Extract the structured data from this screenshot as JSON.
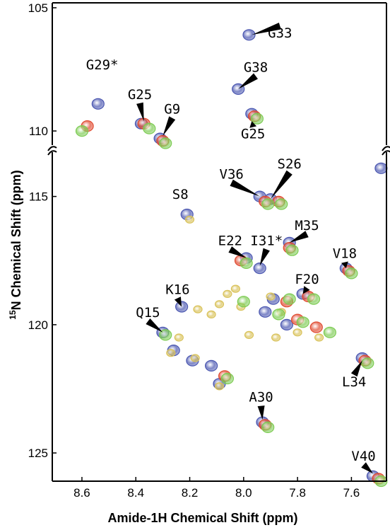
{
  "chart_data": {
    "type": "scatter",
    "title": "",
    "xlabel": "Amide-1H Chemical Shift (ppm)",
    "ylabel_prefix": "15",
    "ylabel_main": "N Chemical Shift (ppm)",
    "x_reversed": true,
    "xlim": [
      7.47,
      8.71
    ],
    "x_ticks": [
      8.6,
      8.4,
      8.2,
      8.0,
      7.8,
      7.6
    ],
    "x_tick_labels": [
      "8.6",
      "8.4",
      "8.2",
      "8.0",
      "7.8",
      "7.6"
    ],
    "upper_panel": {
      "ylim": [
        104.8,
        110.6
      ],
      "y_ticks": [
        105,
        110
      ],
      "y_tick_labels": [
        "105",
        "110"
      ]
    },
    "lower_panel": {
      "ylim": [
        113.3,
        126.1
      ],
      "y_ticks": [
        115,
        120,
        125
      ],
      "y_tick_labels": [
        "115",
        "120",
        "125"
      ]
    },
    "colors": {
      "blue": "#4a56b0",
      "red": "#e0492f",
      "green": "#7ccb52",
      "yellow": "#d9c25a",
      "arrow": "#000000"
    },
    "series": [
      {
        "color": "blue",
        "points": [
          [
            8.54,
            108.9
          ],
          [
            8.38,
            109.7
          ],
          [
            8.31,
            110.3
          ],
          [
            7.98,
            106.1
          ],
          [
            8.02,
            108.3
          ],
          [
            7.97,
            109.3
          ],
          [
            7.49,
            113.9
          ],
          [
            8.21,
            115.7
          ],
          [
            7.94,
            115.0
          ],
          [
            7.9,
            115.1
          ],
          [
            7.83,
            116.8
          ],
          [
            7.94,
            117.8
          ],
          [
            7.99,
            117.4
          ],
          [
            7.62,
            117.8
          ],
          [
            7.78,
            118.8
          ],
          [
            8.23,
            119.3
          ],
          [
            8.3,
            120.3
          ],
          [
            8.26,
            121.0
          ],
          [
            8.19,
            121.4
          ],
          [
            8.12,
            121.6
          ],
          [
            8.09,
            122.3
          ],
          [
            7.89,
            119.0
          ],
          [
            7.92,
            119.5
          ],
          [
            7.84,
            120.0
          ],
          [
            7.56,
            121.3
          ],
          [
            7.93,
            123.8
          ],
          [
            7.52,
            125.9
          ]
        ]
      },
      {
        "color": "red",
        "points": [
          [
            8.58,
            109.8
          ],
          [
            8.37,
            109.7
          ],
          [
            8.3,
            110.4
          ],
          [
            7.96,
            109.4
          ],
          [
            8.01,
            117.5
          ],
          [
            7.92,
            115.2
          ],
          [
            7.87,
            115.2
          ],
          [
            7.83,
            117.0
          ],
          [
            7.61,
            117.9
          ],
          [
            7.76,
            118.9
          ],
          [
            7.84,
            119.1
          ],
          [
            7.8,
            119.8
          ],
          [
            7.73,
            120.1
          ],
          [
            8.07,
            122.0
          ],
          [
            7.55,
            121.4
          ],
          [
            7.92,
            123.9
          ],
          [
            7.5,
            126.0
          ]
        ]
      },
      {
        "color": "green",
        "points": [
          [
            8.6,
            110.0
          ],
          [
            8.35,
            109.9
          ],
          [
            8.29,
            110.5
          ],
          [
            7.95,
            109.5
          ],
          [
            7.99,
            117.6
          ],
          [
            7.91,
            115.3
          ],
          [
            7.86,
            115.3
          ],
          [
            7.82,
            117.1
          ],
          [
            7.6,
            118.0
          ],
          [
            7.74,
            119.0
          ],
          [
            8.0,
            119.1
          ],
          [
            7.87,
            119.6
          ],
          [
            7.83,
            119.0
          ],
          [
            7.78,
            119.9
          ],
          [
            7.68,
            120.3
          ],
          [
            8.29,
            120.4
          ],
          [
            8.06,
            122.1
          ],
          [
            7.54,
            121.5
          ],
          [
            7.91,
            124.0
          ],
          [
            7.49,
            126.1
          ]
        ]
      },
      {
        "color": "yellow",
        "points": [
          [
            8.2,
            115.9
          ],
          [
            8.17,
            119.4
          ],
          [
            8.12,
            119.6
          ],
          [
            8.09,
            119.2
          ],
          [
            8.06,
            118.8
          ],
          [
            8.03,
            118.6
          ],
          [
            8.01,
            119.3
          ],
          [
            7.98,
            120.4
          ],
          [
            7.88,
            120.5
          ],
          [
            7.8,
            120.3
          ],
          [
            7.72,
            120.5
          ],
          [
            8.27,
            121.1
          ],
          [
            8.24,
            120.5
          ],
          [
            8.18,
            121.3
          ],
          [
            8.09,
            122.4
          ],
          [
            7.9,
            118.9
          ],
          [
            7.86,
            119.5
          ]
        ]
      }
    ],
    "annotations": [
      {
        "text": "G29*",
        "x": 8.525,
        "y": 107.5,
        "ax": 8.54,
        "ay": 108.7,
        "arrow": false
      },
      {
        "text": "G25",
        "x": 8.385,
        "y": 108.7,
        "ax": 8.37,
        "ay": 109.6,
        "arrow": true
      },
      {
        "text": "G9",
        "x": 8.265,
        "y": 109.3,
        "ax": 8.3,
        "ay": 110.2,
        "arrow": true
      },
      {
        "text": "G33",
        "x": 7.865,
        "y": 106.2,
        "ax": 7.97,
        "ay": 106.1,
        "arrow": true
      },
      {
        "text": "G38",
        "x": 7.955,
        "y": 107.6,
        "ax": 8.02,
        "ay": 108.3,
        "arrow": true
      },
      {
        "text": "G25",
        "x": 7.965,
        "y": 110.3,
        "ax": 7.97,
        "ay": 109.6,
        "arrow": true
      },
      {
        "text": "S8",
        "x": 8.235,
        "y": 115.1,
        "ax": 8.21,
        "ay": 115.6,
        "arrow": false
      },
      {
        "text": "V36",
        "x": 8.045,
        "y": 114.3,
        "ax": 7.94,
        "ay": 115.0,
        "arrow": true
      },
      {
        "text": "S26",
        "x": 7.83,
        "y": 113.9,
        "ax": 7.9,
        "ay": 115.1,
        "arrow": true
      },
      {
        "text": "M35",
        "x": 7.765,
        "y": 116.3,
        "ax": 7.83,
        "ay": 116.8,
        "arrow": true
      },
      {
        "text": "I31*",
        "x": 7.915,
        "y": 116.9,
        "ax": 7.94,
        "ay": 117.7,
        "arrow": true
      },
      {
        "text": "E22",
        "x": 8.05,
        "y": 116.9,
        "ax": 7.99,
        "ay": 117.4,
        "arrow": true
      },
      {
        "text": "V18",
        "x": 7.625,
        "y": 117.4,
        "ax": 7.62,
        "ay": 117.8,
        "arrow": true
      },
      {
        "text": "F20",
        "x": 7.765,
        "y": 118.4,
        "ax": 7.78,
        "ay": 118.8,
        "arrow": true
      },
      {
        "text": "K16",
        "x": 8.245,
        "y": 118.8,
        "ax": 8.23,
        "ay": 119.3,
        "arrow": true
      },
      {
        "text": "Q15",
        "x": 8.355,
        "y": 119.7,
        "ax": 8.3,
        "ay": 120.3,
        "arrow": true
      },
      {
        "text": "L34",
        "x": 7.59,
        "y": 122.4,
        "ax": 7.56,
        "ay": 121.4,
        "arrow": true
      },
      {
        "text": "A30",
        "x": 7.935,
        "y": 123.0,
        "ax": 7.93,
        "ay": 123.7,
        "arrow": true
      },
      {
        "text": "V40",
        "x": 7.555,
        "y": 125.3,
        "ax": 7.52,
        "ay": 125.8,
        "arrow": true
      }
    ]
  }
}
